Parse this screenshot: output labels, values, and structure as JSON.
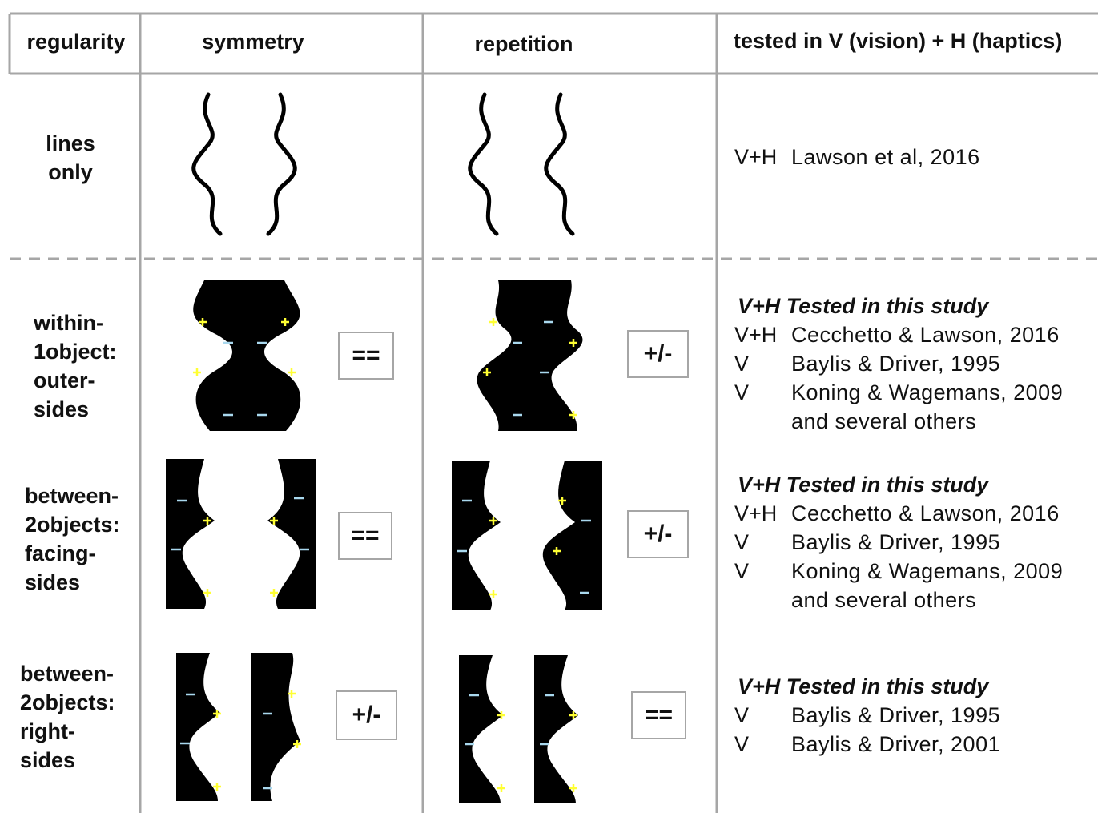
{
  "header": {
    "columns": [
      "regularity",
      "symmetry",
      "repetition",
      "tested in V (vision) + H (haptics)"
    ]
  },
  "rows": [
    {
      "label": [
        "lines",
        "only"
      ],
      "references": [
        {
          "modality": "V+H",
          "text": "Lawson et al, 2016"
        }
      ]
    },
    {
      "label": [
        "within-",
        "1object:",
        "outer-",
        "sides"
      ],
      "symmetry_result": "==",
      "repetition_result": "+/-",
      "highlight": "V+H Tested in this study",
      "references": [
        {
          "modality": "V+H",
          "text": "Cecchetto & Lawson, 2016"
        },
        {
          "modality": "V",
          "text": "Baylis & Driver, 1995"
        },
        {
          "modality": "V",
          "text": "Koning & Wagemans, 2009"
        },
        {
          "text": "and several others"
        }
      ]
    },
    {
      "label": [
        "between-",
        "2objects:",
        "facing-",
        "sides"
      ],
      "symmetry_result": "==",
      "repetition_result": "+/-",
      "highlight": "V+H Tested in this study",
      "references": [
        {
          "modality": "V+H",
          "text": "Cecchetto & Lawson, 2016"
        },
        {
          "modality": "V",
          "text": "Baylis & Driver, 1995"
        },
        {
          "modality": "V",
          "text": "Koning & Wagemans, 2009"
        },
        {
          "text": "and several others"
        }
      ]
    },
    {
      "label": [
        "between-",
        "2objects:",
        "right-",
        "sides"
      ],
      "symmetry_result": "+/-",
      "repetition_result": "==",
      "highlight": "V+H Tested in this study",
      "references": [
        {
          "modality": "V",
          "text": "Baylis & Driver, 1995"
        },
        {
          "modality": "V",
          "text": "Baylis & Driver, 2001"
        }
      ]
    }
  ]
}
